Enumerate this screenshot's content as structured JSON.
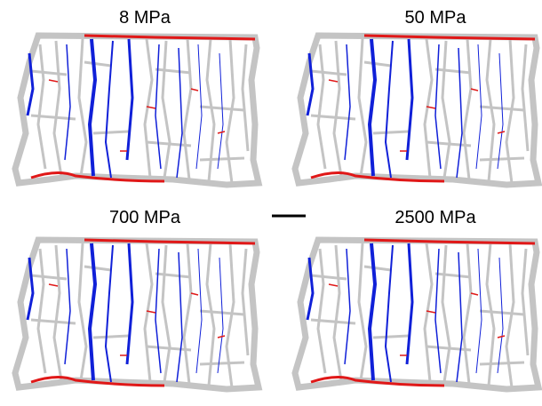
{
  "panels": [
    {
      "label": "8 MPa"
    },
    {
      "label": "50 MPa"
    },
    {
      "label": "700 MPa"
    },
    {
      "label": "2500 MPa"
    }
  ]
}
